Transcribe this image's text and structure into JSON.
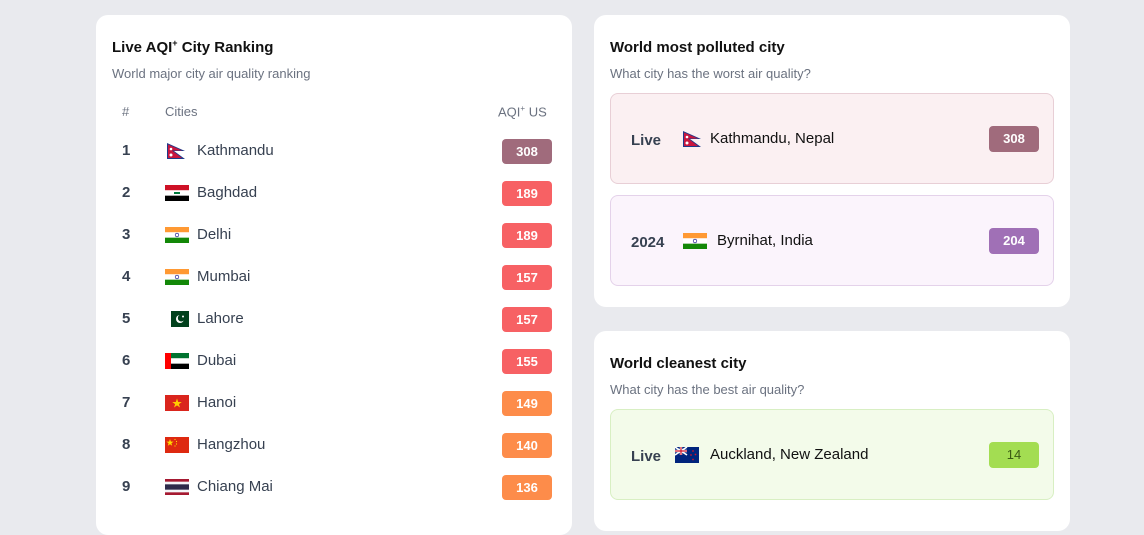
{
  "ranking": {
    "title": "Live AQI",
    "title_sup": "+",
    "title_rest": " City Ranking",
    "subtitle": "World major city air quality ranking",
    "col_rank": "#",
    "col_city": "Cities",
    "col_aqi": "AQI",
    "col_aqi_sup": "+",
    "col_aqi_rest": " US",
    "rows": [
      {
        "rank": "1",
        "city": "Kathmandu",
        "flag": "nepal",
        "aqi": "308",
        "color": "#a06b7c"
      },
      {
        "rank": "2",
        "city": "Baghdad",
        "flag": "iraq",
        "aqi": "189",
        "color": "#f76164"
      },
      {
        "rank": "3",
        "city": "Delhi",
        "flag": "india",
        "aqi": "189",
        "color": "#f76164"
      },
      {
        "rank": "4",
        "city": "Mumbai",
        "flag": "india",
        "aqi": "157",
        "color": "#f76164"
      },
      {
        "rank": "5",
        "city": "Lahore",
        "flag": "pakistan",
        "aqi": "157",
        "color": "#f76164"
      },
      {
        "rank": "6",
        "city": "Dubai",
        "flag": "uae",
        "aqi": "155",
        "color": "#f76164"
      },
      {
        "rank": "7",
        "city": "Hanoi",
        "flag": "vietnam",
        "aqi": "149",
        "color": "#fd8c4a"
      },
      {
        "rank": "8",
        "city": "Hangzhou",
        "flag": "china",
        "aqi": "140",
        "color": "#fd8c4a"
      },
      {
        "rank": "9",
        "city": "Chiang Mai",
        "flag": "thailand",
        "aqi": "136",
        "color": "#fd8c4a"
      }
    ]
  },
  "polluted": {
    "title": "World most polluted city",
    "subtitle": "What city has the worst air quality?",
    "live": {
      "label": "Live",
      "city": "Kathmandu, Nepal",
      "flag": "nepal",
      "aqi": "308",
      "color": "#a06b7c"
    },
    "year": {
      "label": "2024",
      "city": "Byrnihat, India",
      "flag": "india",
      "aqi": "204",
      "color": "#a070b6"
    }
  },
  "cleanest": {
    "title": "World cleanest city",
    "subtitle": "What city has the best air quality?",
    "live": {
      "label": "Live",
      "city": "Auckland, New Zealand",
      "flag": "new-zealand",
      "aqi": "14",
      "color": "#a3dd52"
    }
  }
}
